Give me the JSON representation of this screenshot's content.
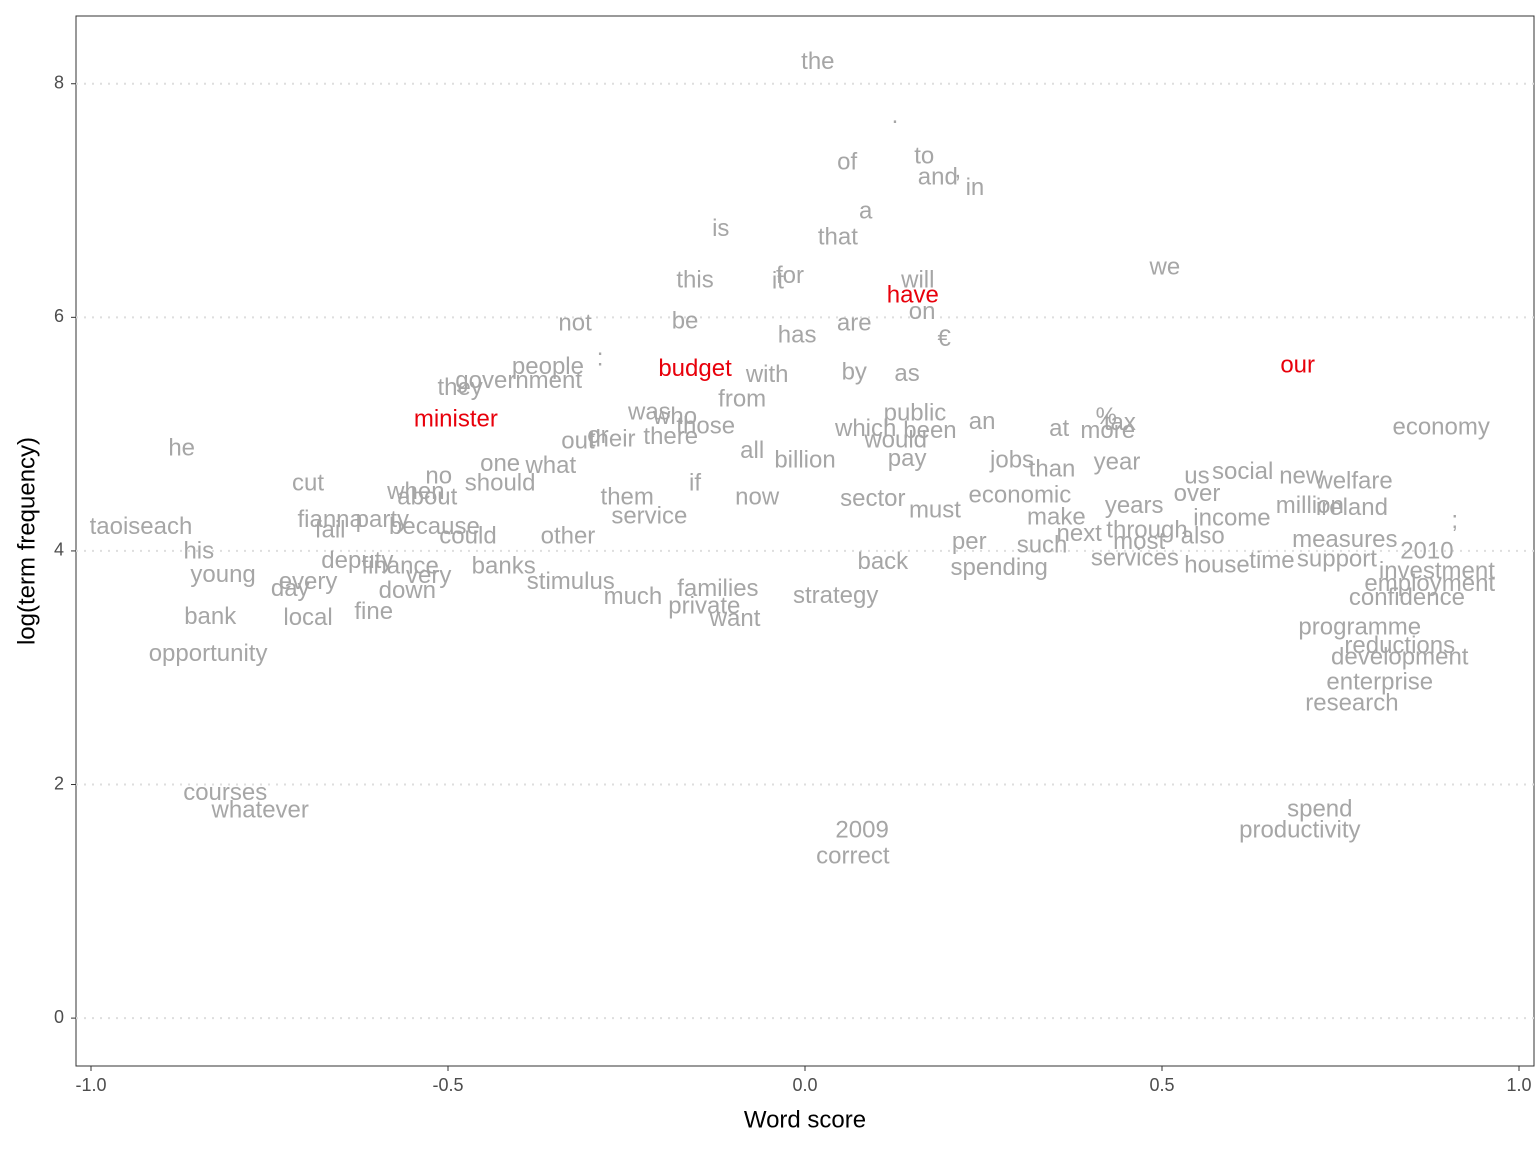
{
  "chart_data": {
    "type": "text-scatter",
    "x_label": "Word score",
    "y_label": "log(term frequency)",
    "xlim": [
      -1.021,
      1.021
    ],
    "ylim": [
      -0.41,
      8.58
    ],
    "xticks": [
      {
        "value": -1,
        "label": "-1.0"
      },
      -0.5,
      {
        "value": 0,
        "label": "0.0"
      },
      0.5,
      {
        "value": 1,
        "label": "1.0"
      }
    ],
    "yticks": [
      0,
      2,
      4,
      6,
      8
    ],
    "grid": true,
    "series": [
      {
        "color": "#a6a6a6",
        "labels": [
          "the",
          ".",
          "of",
          "to",
          "and",
          ",",
          "in",
          "a",
          "is",
          "that",
          "we",
          "this",
          "for",
          "it",
          "will",
          "not",
          "be",
          "on",
          "are",
          "has",
          "€",
          "people",
          ":",
          "with",
          "by",
          "as",
          "government",
          "they",
          "from",
          "was",
          "who",
          "those",
          "public",
          "an",
          "%",
          "tax",
          "at",
          "more",
          "economy",
          "he",
          "which",
          "been",
          "would",
          "or",
          "their",
          "there",
          "out",
          "all",
          "billion",
          "pay",
          "jobs",
          "year",
          "one",
          "what",
          "no",
          "than",
          "us",
          "social",
          "new",
          "welfare",
          "cut",
          "should",
          "if",
          "when",
          "about",
          "them",
          "now",
          "economic",
          "over",
          "sector",
          "years",
          "million",
          "ireland",
          "must",
          "make",
          ";",
          "fianna",
          "party",
          "service",
          "income",
          "taoiseach",
          "fail",
          "because",
          "could",
          "other",
          "through",
          "also",
          "next",
          "per",
          "such",
          "most",
          "his",
          "time",
          "support",
          "2010",
          "back",
          "services",
          "house",
          "young",
          "every",
          "deputy",
          "banks",
          "finance",
          "spending",
          "investment",
          "measures",
          "very",
          "day",
          "stimulus",
          "families",
          "strategy",
          "down",
          "employment",
          "confidence",
          "bank",
          "local",
          "fine",
          "much",
          "want",
          "private",
          "opportunity",
          "development",
          "enterprise",
          "research",
          "courses",
          "whatever",
          "spend",
          "productivity",
          "2009",
          "correct",
          "reductions",
          "programme"
        ],
        "x": [
          0.018,
          0.126,
          0.059,
          0.167,
          0.186,
          0.214,
          0.238,
          0.085,
          -0.118,
          0.046,
          0.504,
          -0.154,
          -0.021,
          -0.038,
          0.158,
          -0.322,
          -0.168,
          0.164,
          0.069,
          -0.011,
          0.195,
          -0.36,
          -0.287,
          -0.053,
          0.069,
          0.143,
          -0.401,
          -0.483,
          -0.088,
          -0.218,
          -0.182,
          -0.139,
          0.154,
          0.248,
          0.422,
          0.441,
          0.356,
          0.424,
          0.891,
          -0.873,
          0.085,
          0.175,
          0.127,
          -0.29,
          -0.27,
          -0.188,
          -0.318,
          -0.074,
          0.0,
          0.143,
          0.29,
          0.437,
          -0.427,
          -0.356,
          -0.513,
          0.346,
          0.549,
          0.613,
          0.695,
          0.769,
          -0.696,
          -0.427,
          -0.154,
          -0.545,
          -0.529,
          -0.249,
          -0.067,
          0.301,
          0.549,
          0.095,
          0.461,
          0.707,
          0.766,
          0.182,
          0.352,
          0.91,
          -0.665,
          -0.592,
          -0.218,
          0.598,
          -0.93,
          -0.665,
          -0.519,
          -0.472,
          -0.332,
          0.479,
          0.557,
          0.384,
          0.23,
          0.332,
          0.468,
          -0.849,
          0.654,
          0.745,
          0.871,
          0.109,
          0.462,
          0.577,
          -0.815,
          -0.696,
          -0.627,
          -0.422,
          -0.567,
          0.272,
          0.885,
          0.756,
          -0.527,
          -0.721,
          -0.328,
          -0.122,
          0.043,
          -0.557,
          0.875,
          0.843,
          -0.833,
          -0.696,
          -0.604,
          -0.241,
          -0.098,
          -0.141,
          -0.836,
          0.833,
          0.805,
          0.766,
          -0.812,
          -0.763,
          0.721,
          0.693,
          0.08,
          0.067,
          0.833,
          0.777
        ],
        "y": [
          8.18,
          7.72,
          7.32,
          7.37,
          7.19,
          7.25,
          7.1,
          6.9,
          6.75,
          6.68,
          6.42,
          6.31,
          6.35,
          6.3,
          6.31,
          5.94,
          5.96,
          6.04,
          5.94,
          5.84,
          5.81,
          5.57,
          5.64,
          5.5,
          5.52,
          5.51,
          5.45,
          5.39,
          5.29,
          5.18,
          5.14,
          5.06,
          5.17,
          5.1,
          5.14,
          5.09,
          5.04,
          5.02,
          5.05,
          4.87,
          5.04,
          5.02,
          4.94,
          4.98,
          4.95,
          4.97,
          4.93,
          4.85,
          4.77,
          4.78,
          4.77,
          4.75,
          4.74,
          4.72,
          4.63,
          4.69,
          4.63,
          4.67,
          4.63,
          4.59,
          4.57,
          4.57,
          4.57,
          4.5,
          4.45,
          4.45,
          4.45,
          4.47,
          4.48,
          4.44,
          4.38,
          4.38,
          4.36,
          4.34,
          4.28,
          4.25,
          4.26,
          4.26,
          4.29,
          4.27,
          4.2,
          4.17,
          4.2,
          4.12,
          4.12,
          4.17,
          4.12,
          4.14,
          4.07,
          4.04,
          4.07,
          3.99,
          3.91,
          3.92,
          3.99,
          3.9,
          3.93,
          3.87,
          3.79,
          3.73,
          3.91,
          3.86,
          3.86,
          3.85,
          3.82,
          4.09,
          3.78,
          3.67,
          3.73,
          3.67,
          3.61,
          3.65,
          3.71,
          3.59,
          3.43,
          3.42,
          3.47,
          3.6,
          3.41,
          3.52,
          3.11,
          3.08,
          2.87,
          2.69,
          1.92,
          1.77,
          1.78,
          1.6,
          1.6,
          1.38,
          3.18,
          3.34
        ]
      },
      {
        "color": "#e8000b",
        "labels": [
          "have",
          "budget",
          "our",
          "minister"
        ],
        "x": [
          0.151,
          -0.154,
          0.69,
          -0.489
        ],
        "y": [
          6.18,
          5.55,
          5.58,
          5.12
        ]
      }
    ]
  }
}
